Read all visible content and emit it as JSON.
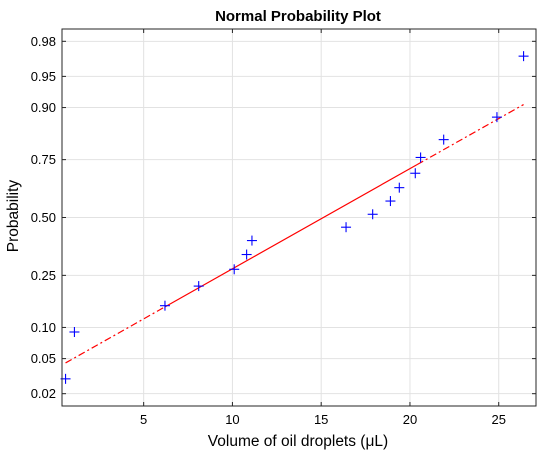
{
  "chart_data": {
    "type": "scatter",
    "title": "Normal Probability Plot",
    "xlabel": "Volume of oil droplets (μL)",
    "ylabel": "Probability",
    "xlim": [
      0.4,
      27.1
    ],
    "ylim": [
      0.014,
      0.986
    ],
    "y_scale": "normal-probability",
    "grid": true,
    "xticks": [
      {
        "value": 5,
        "label": "5"
      },
      {
        "value": 10,
        "label": "10"
      },
      {
        "value": 15,
        "label": "15"
      },
      {
        "value": 20,
        "label": "20"
      },
      {
        "value": 25,
        "label": "25"
      }
    ],
    "yticks": [
      {
        "value": 0.02,
        "label": "0.02"
      },
      {
        "value": 0.05,
        "label": "0.05"
      },
      {
        "value": 0.1,
        "label": "0.10"
      },
      {
        "value": 0.25,
        "label": "0.25"
      },
      {
        "value": 0.5,
        "label": "0.50"
      },
      {
        "value": 0.75,
        "label": "0.75"
      },
      {
        "value": 0.9,
        "label": "0.90"
      },
      {
        "value": 0.95,
        "label": "0.95"
      },
      {
        "value": 0.98,
        "label": "0.98"
      }
    ],
    "series": [
      {
        "marker": "+",
        "color": "#0000ff",
        "points": [
          {
            "x": 0.6,
            "y": 0.03
          },
          {
            "x": 1.1,
            "y": 0.091
          },
          {
            "x": 6.2,
            "y": 0.152
          },
          {
            "x": 8.1,
            "y": 0.212
          },
          {
            "x": 10.1,
            "y": 0.273
          },
          {
            "x": 10.8,
            "y": 0.333
          },
          {
            "x": 11.1,
            "y": 0.394
          },
          {
            "x": 16.4,
            "y": 0.455
          },
          {
            "x": 17.9,
            "y": 0.515
          },
          {
            "x": 18.9,
            "y": 0.576
          },
          {
            "x": 19.4,
            "y": 0.636
          },
          {
            "x": 20.3,
            "y": 0.697
          },
          {
            "x": 20.6,
            "y": 0.758
          },
          {
            "x": 21.9,
            "y": 0.818
          },
          {
            "x": 24.9,
            "y": 0.879
          },
          {
            "x": 26.4,
            "y": 0.97
          }
        ]
      }
    ],
    "reference_line": {
      "color": "#ff0000",
      "solid_x_range": [
        6.2,
        20.4
      ],
      "dash_style": "dash-dot",
      "endpoints": [
        {
          "x": 0.6,
          "y": 0.045
        },
        {
          "x": 26.4,
          "y": 0.906
        }
      ]
    }
  }
}
